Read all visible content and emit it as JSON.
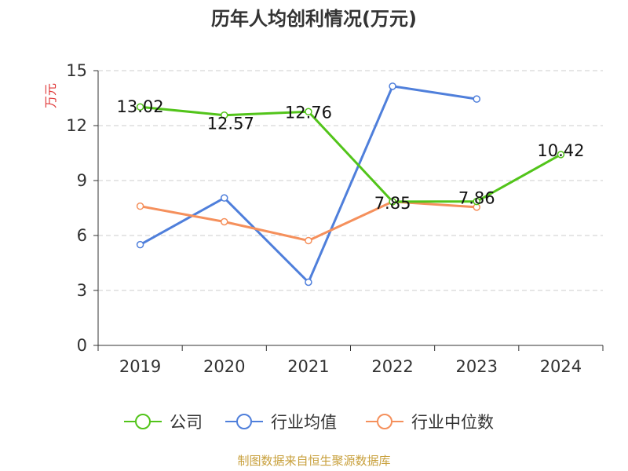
{
  "chart_data": {
    "type": "line",
    "title": "历年人均创利情况(万元)",
    "ylabel": "万元",
    "xlabel": "",
    "categories": [
      "2019",
      "2020",
      "2021",
      "2022",
      "2023",
      "2024"
    ],
    "ylim": [
      0,
      15
    ],
    "yticks": [
      0,
      3,
      6,
      9,
      12,
      15
    ],
    "grid": "horizontal-dashed",
    "legend_position": "bottom",
    "series": [
      {
        "name": "公司",
        "color": "#52c41a",
        "values": [
          13.02,
          12.57,
          12.76,
          7.85,
          7.86,
          10.42
        ],
        "show_labels": true
      },
      {
        "name": "行业均值",
        "color": "#4f7fdb",
        "values": [
          5.5,
          8.05,
          3.45,
          14.15,
          13.45,
          null
        ],
        "show_labels": false
      },
      {
        "name": "行业中位数",
        "color": "#f5905c",
        "values": [
          7.6,
          6.75,
          5.72,
          7.85,
          7.55,
          null
        ],
        "show_labels": false
      }
    ]
  },
  "source": "制图数据来自恒生聚源数据库",
  "colors": {
    "ylabel": "#e03b3b",
    "source": "#c8a03c",
    "grid": "#cccccc",
    "axis": "#333333"
  }
}
